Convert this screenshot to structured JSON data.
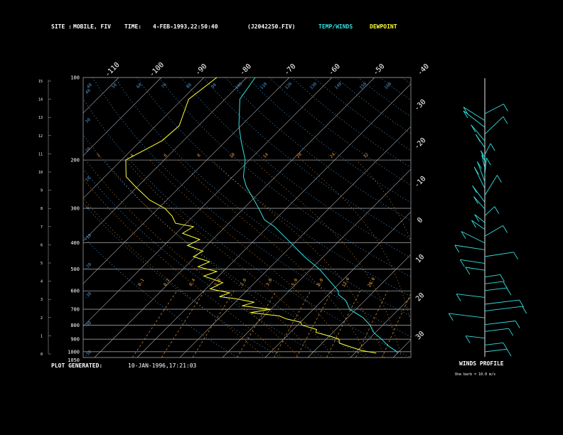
{
  "header": {
    "site_label": "SITE :",
    "site_value": "MOBILE, FIV",
    "time_label": "TIME:",
    "time_value": "4-FEB-1993,22:50:40",
    "file_value": "(J2042250.FIV)",
    "temp_winds_label": "TEMP/WINDS",
    "dewpoint_label": "DEWPOINT"
  },
  "footer": {
    "plot_generated_label": "PLOT GENERATED:",
    "plot_generated_value": "10-JAN-1996,17:21:03",
    "winds_profile_label": "WINDS PROFILE",
    "barb_note": "One barb = 10.0 m/s"
  },
  "colors": {
    "background": "#000000",
    "temperature": "#33e0e0",
    "dewpoint": "#ffff33",
    "isobar": "#9a9a9a",
    "isotherm": "#b4b4b4",
    "dry_adiabat": "#4f9bd8",
    "moist_adiabat": "#ff9a30",
    "mixing_ratio": "#ffb040",
    "text": "#ffffff"
  },
  "chart_data": {
    "type": "line",
    "pressure_levels": [
      "100",
      "200",
      "300",
      "400",
      "500",
      "600",
      "700",
      "800",
      "900",
      "1000",
      "1050"
    ],
    "height_ticks": [
      "0",
      "1",
      "2",
      "3",
      "4",
      "5",
      "6",
      "7",
      "8",
      "9",
      "10",
      "11",
      "12",
      "13",
      "14",
      "15"
    ],
    "top_isotherm_labels": [
      "-110",
      "-100",
      "-90",
      "-80",
      "-70",
      "-60",
      "-50",
      "-40"
    ],
    "right_isotherm_labels": [
      "-30",
      "-20",
      "-10",
      "0",
      "10",
      "20",
      "30"
    ],
    "top_potential_temp_labels": [
      "40",
      "50",
      "60",
      "70",
      "80",
      "90",
      "100",
      "110",
      "120",
      "130",
      "140",
      "150",
      "160"
    ],
    "moist_labels": [
      "2",
      "4",
      "6",
      "8",
      "10",
      "14",
      "20",
      "24",
      "32"
    ],
    "mixing_labels": [
      "0.1",
      "0.2",
      "0.4",
      "1.0",
      "2.0",
      "3.0",
      "5.0",
      "8.0",
      "12.0",
      "20.0"
    ],
    "left_theta_labels": [
      "40",
      "30",
      "20",
      "10",
      "0",
      "-10",
      "-20",
      "-30",
      "-40",
      "-50"
    ],
    "series": [
      {
        "name": "TEMP/WINDS",
        "points": [
          [
            100,
            -78.0
          ],
          [
            120,
            -76.5
          ],
          [
            150,
            -70.5
          ],
          [
            170,
            -66.5
          ],
          [
            200,
            -61.0
          ],
          [
            230,
            -57.5
          ],
          [
            250,
            -54.5
          ],
          [
            280,
            -49.5
          ],
          [
            300,
            -46.5
          ],
          [
            330,
            -42.5
          ],
          [
            350,
            -38.5
          ],
          [
            400,
            -31.0
          ],
          [
            450,
            -24.5
          ],
          [
            500,
            -18.0
          ],
          [
            550,
            -13.0
          ],
          [
            600,
            -8.5
          ],
          [
            620,
            -7.5
          ],
          [
            650,
            -4.5
          ],
          [
            700,
            -1.5
          ],
          [
            750,
            3.5
          ],
          [
            800,
            7.0
          ],
          [
            850,
            9.5
          ],
          [
            900,
            13.0
          ],
          [
            950,
            16.0
          ],
          [
            1000,
            19.5
          ],
          [
            1012,
            20.0
          ]
        ]
      },
      {
        "name": "DEWPOINT",
        "points": [
          [
            100,
            -87.0
          ],
          [
            120,
            -88.5
          ],
          [
            150,
            -84.5
          ],
          [
            170,
            -85.0
          ],
          [
            200,
            -89.0
          ],
          [
            230,
            -85.0
          ],
          [
            250,
            -80.5
          ],
          [
            280,
            -74.0
          ],
          [
            300,
            -68.5
          ],
          [
            320,
            -65.0
          ],
          [
            340,
            -62.5
          ],
          [
            350,
            -57.5
          ],
          [
            370,
            -58.5
          ],
          [
            390,
            -53.0
          ],
          [
            410,
            -54.5
          ],
          [
            430,
            -49.5
          ],
          [
            450,
            -50.5
          ],
          [
            470,
            -45.5
          ],
          [
            490,
            -47.0
          ],
          [
            510,
            -41.5
          ],
          [
            530,
            -43.5
          ],
          [
            560,
            -37.5
          ],
          [
            590,
            -39.0
          ],
          [
            610,
            -33.5
          ],
          [
            630,
            -35.0
          ],
          [
            640,
            -31.0
          ],
          [
            660,
            -25.5
          ],
          [
            680,
            -27.5
          ],
          [
            700,
            -20.0
          ],
          [
            720,
            -24.0
          ],
          [
            740,
            -16.5
          ],
          [
            760,
            -14.0
          ],
          [
            780,
            -10.0
          ],
          [
            800,
            -9.0
          ],
          [
            830,
            -4.5
          ],
          [
            850,
            -4.0
          ],
          [
            880,
            0.5
          ],
          [
            900,
            3.0
          ],
          [
            930,
            4.0
          ],
          [
            960,
            7.5
          ],
          [
            990,
            11.0
          ],
          [
            1012,
            15.0
          ]
        ]
      }
    ],
    "wind_profile_levels": 36
  }
}
